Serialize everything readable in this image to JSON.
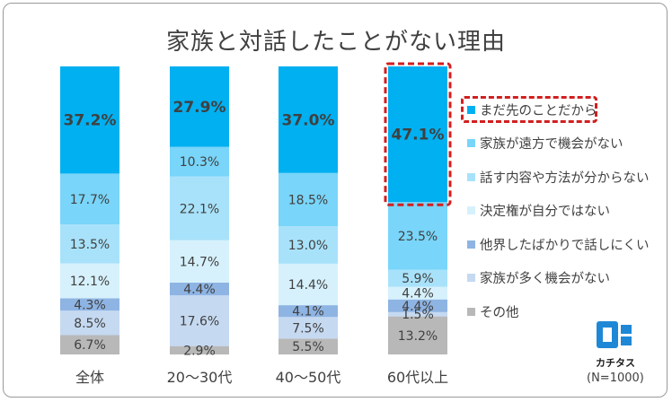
{
  "chart_data": {
    "type": "bar",
    "stacked": true,
    "normalized": true,
    "title": "家族と対話したことがない理由",
    "categories": [
      "全体",
      "20～30代",
      "40～50代",
      "60代以上"
    ],
    "series": [
      {
        "name": "まだ先のことだから",
        "color": "#00b0f0",
        "values": [
          37.2,
          27.9,
          37.0,
          47.1
        ],
        "labels": [
          "37.2%",
          "27.9%",
          "37.0%",
          "47.1%"
        ]
      },
      {
        "name": "家族が遠方で機会がない",
        "color": "#79d5f9",
        "values": [
          17.7,
          10.3,
          18.5,
          23.5
        ],
        "labels": [
          "17.7%",
          "10.3%",
          "18.5%",
          "23.5%"
        ]
      },
      {
        "name": "話す内容や方法が分からない",
        "color": "#a8e2fa",
        "values": [
          13.5,
          22.1,
          13.0,
          5.9
        ],
        "labels": [
          "13.5%",
          "22.1%",
          "13.0%",
          "5.9%"
        ]
      },
      {
        "name": "決定権が自分ではない",
        "color": "#d6f1fc",
        "values": [
          12.1,
          14.7,
          14.4,
          4.4
        ],
        "labels": [
          "12.1%",
          "14.7%",
          "14.4%",
          "4.4%"
        ]
      },
      {
        "name": "他界したばかりで話しにくい",
        "color": "#8eb4e3",
        "values": [
          4.3,
          4.4,
          4.1,
          4.4
        ],
        "labels": [
          "4.3%",
          "4.4%",
          "4.1%",
          "4.4%"
        ]
      },
      {
        "name": "家族が多く機会がない",
        "color": "#c5d9f1",
        "values": [
          8.5,
          17.6,
          7.5,
          1.5
        ],
        "labels": [
          "8.5%",
          "17.6%",
          "7.5%",
          "1.5%"
        ]
      },
      {
        "name": "その他",
        "color": "#b8b8b8",
        "values": [
          6.7,
          2.9,
          5.5,
          13.2
        ],
        "labels": [
          "6.7%",
          "2.9%",
          "5.5%",
          "13.2%"
        ]
      }
    ],
    "highlight": {
      "category": "60代以上",
      "series": "まだ先のことだから"
    },
    "legend_position": "right",
    "grid": false
  },
  "brand": {
    "logo_text": "カチタス",
    "logo_color": "#1e88d6"
  },
  "footnote": "(N=1000)"
}
